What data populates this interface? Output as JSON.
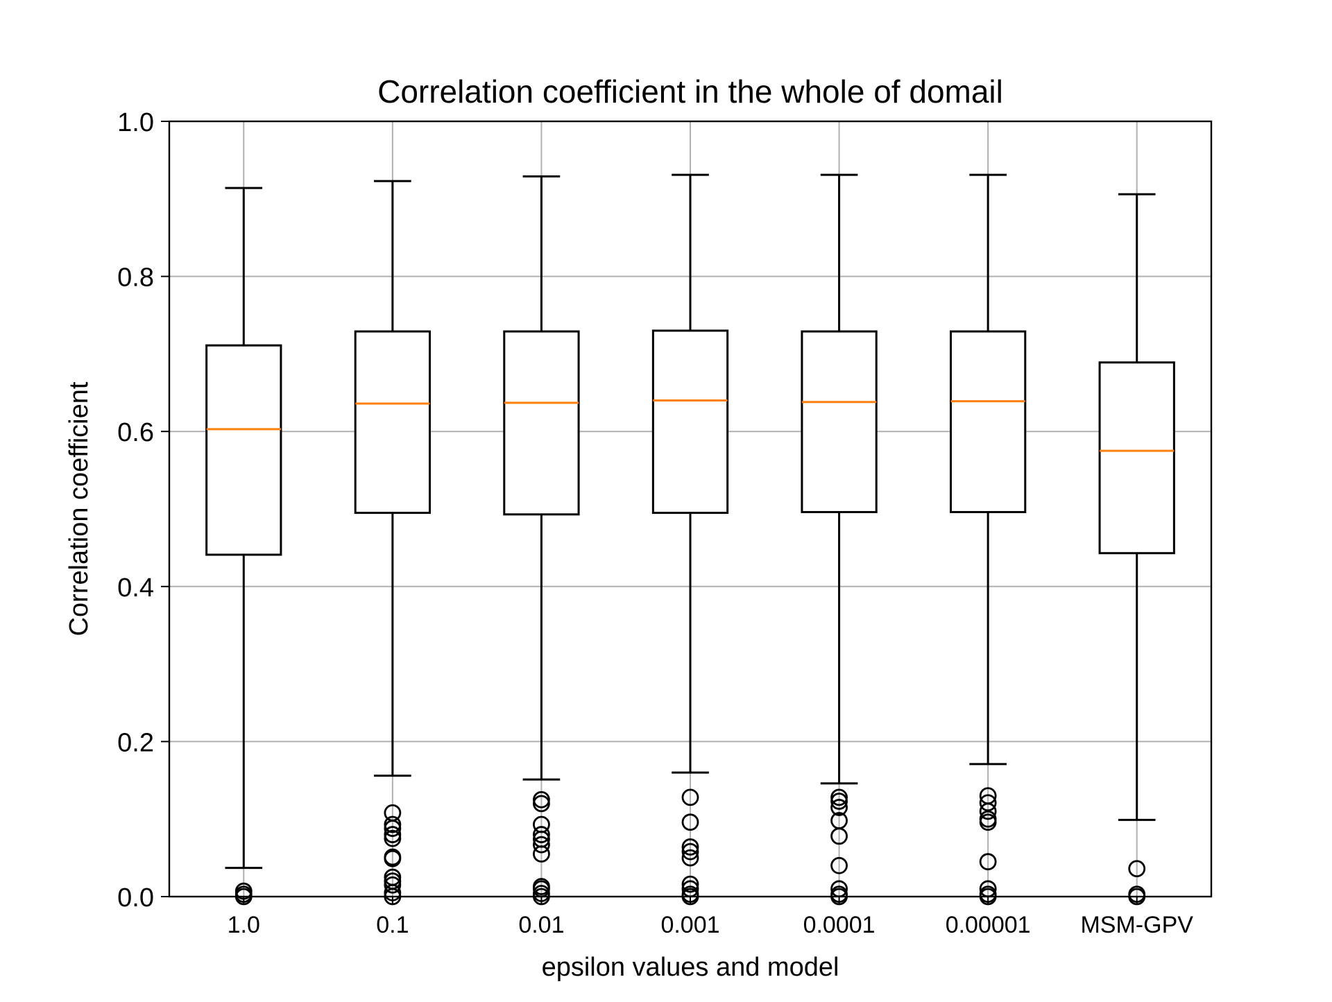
{
  "chart_data": {
    "type": "box",
    "title": "Correlation coefficient in the whole of domail",
    "xlabel": "epsilon values and model",
    "ylabel": "Correlation coefficient",
    "ylim": [
      0.0,
      1.0
    ],
    "yticks": [
      "0.0",
      "0.2",
      "0.4",
      "0.6",
      "0.8",
      "1.0"
    ],
    "grid": true,
    "colors": {
      "box": "#000000",
      "median": "#ff7f0e",
      "grid": "#b0b0b0"
    },
    "categories": [
      "1.0",
      "0.1",
      "0.01",
      "0.001",
      "0.0001",
      "0.00001",
      "MSM-GPV"
    ],
    "boxes": [
      {
        "whisker_low": 0.037,
        "q1": 0.441,
        "median": 0.603,
        "q3": 0.711,
        "whisker_high": 0.914,
        "outliers": [
          0.007,
          0.003,
          0.0
        ]
      },
      {
        "whisker_low": 0.156,
        "q1": 0.495,
        "median": 0.636,
        "q3": 0.729,
        "whisker_high": 0.923,
        "outliers": [
          0.108,
          0.093,
          0.088,
          0.08,
          0.075,
          0.051,
          0.049,
          0.025,
          0.02,
          0.015,
          0.005,
          0.0
        ]
      },
      {
        "whisker_low": 0.151,
        "q1": 0.493,
        "median": 0.637,
        "q3": 0.729,
        "whisker_high": 0.929,
        "outliers": [
          0.125,
          0.12,
          0.093,
          0.08,
          0.074,
          0.067,
          0.055,
          0.013,
          0.01,
          0.004,
          0.0
        ]
      },
      {
        "whisker_low": 0.16,
        "q1": 0.495,
        "median": 0.64,
        "q3": 0.73,
        "whisker_high": 0.931,
        "outliers": [
          0.128,
          0.096,
          0.064,
          0.058,
          0.05,
          0.016,
          0.01,
          0.003,
          0.0
        ]
      },
      {
        "whisker_low": 0.146,
        "q1": 0.496,
        "median": 0.638,
        "q3": 0.729,
        "whisker_high": 0.931,
        "outliers": [
          0.128,
          0.123,
          0.115,
          0.098,
          0.078,
          0.04,
          0.01,
          0.003,
          0.0
        ]
      },
      {
        "whisker_low": 0.171,
        "q1": 0.496,
        "median": 0.639,
        "q3": 0.729,
        "whisker_high": 0.931,
        "outliers": [
          0.13,
          0.121,
          0.11,
          0.1,
          0.096,
          0.045,
          0.01,
          0.003,
          0.0
        ]
      },
      {
        "whisker_low": 0.099,
        "q1": 0.443,
        "median": 0.575,
        "q3": 0.689,
        "whisker_high": 0.906,
        "outliers": [
          0.036,
          0.003,
          0.0
        ]
      }
    ]
  }
}
